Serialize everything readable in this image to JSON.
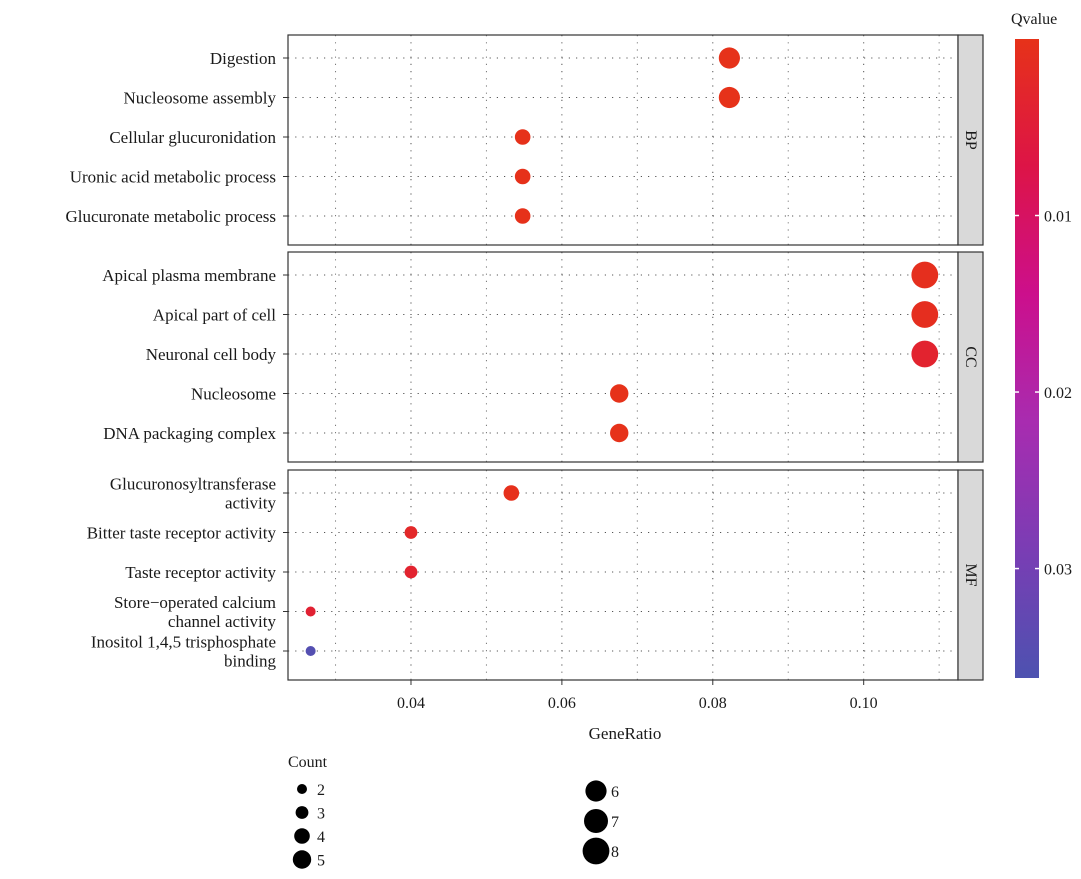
{
  "chart_data": {
    "type": "scatter",
    "xlabel": "GeneRatio",
    "x_ticks": [
      0.04,
      0.06,
      0.08,
      0.1
    ],
    "x_tick_labels": [
      "0.04",
      "0.06",
      "0.08",
      "0.10"
    ],
    "xlim": [
      0.0237,
      0.1125
    ],
    "grid": true,
    "facets": [
      {
        "name": "BP",
        "terms": [
          {
            "label": [
              "Digestion"
            ],
            "gene_ratio": 0.0822,
            "count": 6,
            "qvalue": 0.0001
          },
          {
            "label": [
              "Nucleosome assembly"
            ],
            "gene_ratio": 0.0822,
            "count": 6,
            "qvalue": 0.0001
          },
          {
            "label": [
              "Cellular glucuronidation"
            ],
            "gene_ratio": 0.0548,
            "count": 4,
            "qvalue": 0.0002
          },
          {
            "label": [
              "Uronic acid metabolic process"
            ],
            "gene_ratio": 0.0548,
            "count": 4,
            "qvalue": 0.0002
          },
          {
            "label": [
              "Glucuronate metabolic process"
            ],
            "gene_ratio": 0.0548,
            "count": 4,
            "qvalue": 0.0002
          }
        ]
      },
      {
        "name": "CC",
        "terms": [
          {
            "label": [
              "Apical plasma membrane"
            ],
            "gene_ratio": 0.1081,
            "count": 8,
            "qvalue": 0.0008
          },
          {
            "label": [
              "Apical part of cell"
            ],
            "gene_ratio": 0.1081,
            "count": 8,
            "qvalue": 0.001
          },
          {
            "label": [
              "Neuronal cell body"
            ],
            "gene_ratio": 0.1081,
            "count": 8,
            "qvalue": 0.0035
          },
          {
            "label": [
              "Nucleosome"
            ],
            "gene_ratio": 0.0676,
            "count": 5,
            "qvalue": 0.0001
          },
          {
            "label": [
              "DNA packaging complex"
            ],
            "gene_ratio": 0.0676,
            "count": 5,
            "qvalue": 0.0001
          }
        ]
      },
      {
        "name": "MF",
        "terms": [
          {
            "label": [
              "Glucuronosyltransferase",
              "activity"
            ],
            "gene_ratio": 0.0533,
            "count": 4,
            "qvalue": 0.0004
          },
          {
            "label": [
              "Bitter taste receptor activity"
            ],
            "gene_ratio": 0.04,
            "count": 3,
            "qvalue": 0.0025
          },
          {
            "label": [
              "Taste receptor activity"
            ],
            "gene_ratio": 0.04,
            "count": 3,
            "qvalue": 0.0035
          },
          {
            "label": [
              "Store−operated calcium",
              "channel activity"
            ],
            "gene_ratio": 0.0267,
            "count": 2,
            "qvalue": 0.004
          },
          {
            "label": [
              "Inositol 1,4,5 trisphosphate",
              "binding"
            ],
            "gene_ratio": 0.0267,
            "count": 2,
            "qvalue": 0.035
          }
        ]
      }
    ],
    "color_legend": {
      "title": "Qvalue",
      "range": [
        0,
        0.0362
      ],
      "ticks": [
        0.01,
        0.02,
        0.03
      ],
      "tick_labels": [
        "0.01",
        "0.02",
        "0.03"
      ],
      "colors": [
        "#e63219",
        "#dd1447",
        "#cc0f8c",
        "#a82cb0",
        "#7a3db4",
        "#4d52b0"
      ]
    },
    "size_legend": {
      "title": "Count",
      "values": [
        2,
        3,
        4,
        5,
        6,
        7,
        8
      ],
      "labels": [
        "2",
        "3",
        "4",
        "5",
        "6",
        "7",
        "8"
      ]
    }
  }
}
